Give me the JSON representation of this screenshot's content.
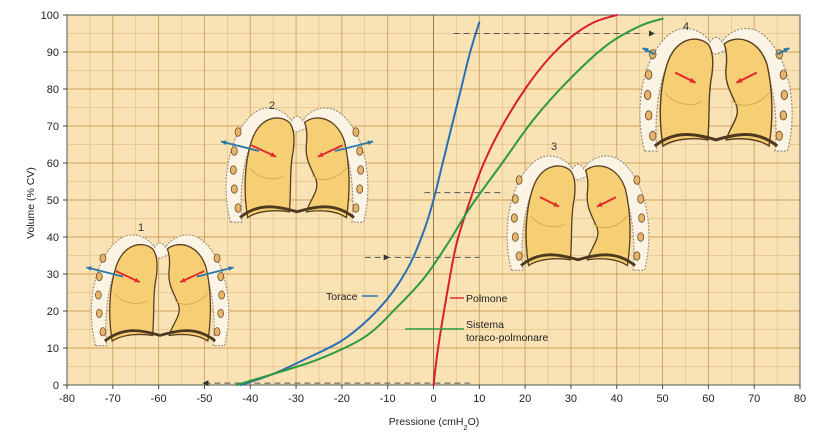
{
  "chart_data": {
    "type": "line",
    "xlabel": "Pressione (cmH",
    "xlabel_sub": "2",
    "xlabel_end": "O)",
    "ylabel": "Volume (% CV)",
    "xlim": [
      -80,
      80
    ],
    "ylim": [
      0,
      100
    ],
    "x_ticks": [
      "-80",
      "-70",
      "-60",
      "-50",
      "-40",
      "-30",
      "-20",
      "-10",
      "0",
      "10",
      "20",
      "30",
      "40",
      "50",
      "60",
      "70",
      "80"
    ],
    "y_ticks": [
      "0",
      "10",
      "20",
      "30",
      "40",
      "50",
      "60",
      "70",
      "80",
      "90",
      "100"
    ],
    "grid": true,
    "colors": {
      "background": "#f9e3b4",
      "grid": "#c89a56",
      "torace": "#2a6fb5",
      "polmone": "#d81e2f",
      "sistema": "#2e9a3e",
      "lung_fill": "#f6cf74",
      "pleura_fill": "#fbf3e3"
    },
    "series": [
      {
        "name": "Torace",
        "color_key": "torace",
        "x": [
          -42,
          -35,
          -28,
          -20,
          -14,
          -9,
          -5,
          -2,
          0,
          2,
          4,
          6,
          8,
          10
        ],
        "y": [
          0,
          3,
          7,
          12,
          18,
          25,
          33,
          42,
          50,
          60,
          70,
          80,
          90,
          98
        ]
      },
      {
        "name": "Polmone",
        "color_key": "polmone",
        "x": [
          0,
          1,
          3,
          5,
          8,
          11,
          15,
          20,
          25,
          30,
          35,
          40
        ],
        "y": [
          0,
          10,
          25,
          38,
          50,
          60,
          70,
          80,
          88,
          94,
          98,
          100
        ]
      },
      {
        "name": "Sistema toraco-polmonare",
        "color_key": "sistema",
        "x": [
          -43,
          -35,
          -25,
          -15,
          -8,
          -2,
          3,
          8,
          15,
          22,
          30,
          38,
          45,
          50
        ],
        "y": [
          0,
          3,
          7,
          13,
          21,
          29,
          38,
          48,
          60,
          72,
          83,
          92,
          97,
          99
        ]
      }
    ],
    "annotations": [
      {
        "text": "Torace",
        "color_key": "torace"
      },
      {
        "text": "Polmone",
        "color_key": "polmone"
      },
      {
        "text": "Sistema",
        "color_key": "sistema"
      },
      {
        "text": "toraco-polmonare",
        "color_key": "sistema"
      }
    ],
    "figure_labels": [
      "1",
      "2",
      "3",
      "4"
    ],
    "reference_points": [
      {
        "x": -50,
        "y": 0.5,
        "target_x": 8
      },
      {
        "x": -15,
        "y": 34.5,
        "target_x": 10
      },
      {
        "x": -2,
        "y": 52,
        "target_x": 15
      },
      {
        "x": 45,
        "y": 95,
        "target_x": 4
      }
    ]
  }
}
